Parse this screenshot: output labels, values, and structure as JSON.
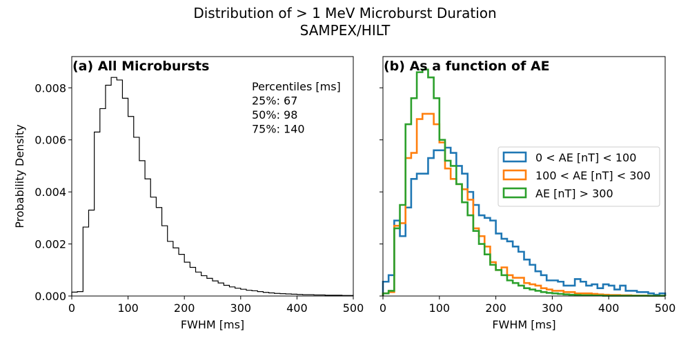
{
  "suptitle": [
    "Distribution of > 1 MeV Microburst Duration",
    "SAMPEX/HILT"
  ],
  "chart_data": [
    {
      "type": "histogram",
      "title": "(a) All Microbursts",
      "xlabel": "FWHM [ms]",
      "ylabel": "Probability Density",
      "xlim": [
        0,
        500
      ],
      "ylim": [
        0,
        0.0092
      ],
      "xticks": [
        0,
        100,
        200,
        300,
        400,
        500
      ],
      "yticks": [
        0.0,
        0.002,
        0.004,
        0.006,
        0.008
      ],
      "ytick_labels": [
        "0.000",
        "0.002",
        "0.004",
        "0.006",
        "0.008"
      ],
      "grid": false,
      "bin_edges_start": 0,
      "bin_width": 10,
      "annotation": [
        "Percentiles [ms]",
        "25%: 67",
        "50%: 98",
        "75%: 140"
      ],
      "series": [
        {
          "color": "#000000",
          "values": [
            0.00015,
            0.00017,
            0.00265,
            0.0033,
            0.0063,
            0.0072,
            0.0081,
            0.0084,
            0.0083,
            0.0076,
            0.0069,
            0.0061,
            0.0052,
            0.0045,
            0.0038,
            0.0034,
            0.0027,
            0.0021,
            0.00185,
            0.0016,
            0.0013,
            0.0011,
            0.00092,
            0.00078,
            0.00068,
            0.00058,
            0.0005,
            0.00041,
            0.00035,
            0.0003,
            0.00026,
            0.00022,
            0.0002,
            0.00017,
            0.00014,
            0.00012,
            0.0001,
            9e-05,
            8e-05,
            7e-05,
            6e-05,
            5e-05,
            5e-05,
            4e-05,
            4e-05,
            3e-05,
            3e-05,
            3e-05,
            2e-05,
            2e-05
          ]
        }
      ]
    },
    {
      "type": "histogram",
      "title": "(b) As a function of AE",
      "xlabel": "FWHM [ms]",
      "xlim": [
        0,
        500
      ],
      "ylim": [
        0,
        0.0092
      ],
      "xticks": [
        0,
        100,
        200,
        300,
        400,
        500
      ],
      "grid": false,
      "bin_edges_start": 0,
      "bin_width": 10,
      "legend_position": "center-right",
      "series": [
        {
          "name": "0 < AE [nT] < 100",
          "color": "#1f77b4",
          "values": [
            0.00055,
            0.0008,
            0.0029,
            0.0023,
            0.0034,
            0.0045,
            0.0047,
            0.0047,
            0.0053,
            0.0056,
            0.0056,
            0.0057,
            0.0055,
            0.005,
            0.0047,
            0.004,
            0.0035,
            0.0031,
            0.003,
            0.0029,
            0.0024,
            0.0022,
            0.0021,
            0.0019,
            0.0017,
            0.0014,
            0.0012,
            0.00095,
            0.0008,
            0.0006,
            0.0006,
            0.00055,
            0.0004,
            0.0004,
            0.00065,
            0.00055,
            0.0004,
            0.00045,
            0.0003,
            0.00045,
            0.0004,
            0.00025,
            0.0004,
            0.0002,
            0.0002,
            0.00015,
            0.00015,
            0.0001,
            5e-05,
            0.0001
          ]
        },
        {
          "name": "100 < AE [nT] < 300",
          "color": "#ff7f0e",
          "values": [
            0.0001,
            0.00015,
            0.0027,
            0.0028,
            0.0053,
            0.0055,
            0.0068,
            0.007,
            0.007,
            0.0066,
            0.0059,
            0.0049,
            0.0045,
            0.0043,
            0.0041,
            0.0037,
            0.0026,
            0.0023,
            0.0019,
            0.0013,
            0.001,
            0.0011,
            0.0008,
            0.0007,
            0.0007,
            0.0005,
            0.00045,
            0.0004,
            0.0003,
            0.00025,
            0.0002,
            0.0002,
            0.00015,
            0.00015,
            0.0001,
            0.0001,
            0.0001,
            8e-05,
            6e-05,
            5e-05,
            4e-05,
            4e-05,
            3e-05,
            3e-05,
            2e-05,
            2e-05,
            2e-05,
            1e-05,
            1e-05,
            1e-05
          ]
        },
        {
          "name": "AE [nT] > 300",
          "color": "#2ca02c",
          "values": [
            0.0001,
            0.0002,
            0.0026,
            0.0035,
            0.0066,
            0.0076,
            0.0086,
            0.0087,
            0.0084,
            0.0076,
            0.006,
            0.0052,
            0.005,
            0.0043,
            0.0036,
            0.0031,
            0.0025,
            0.002,
            0.0016,
            0.0012,
            0.001,
            0.0008,
            0.0006,
            0.0005,
            0.0004,
            0.0003,
            0.00025,
            0.0002,
            0.00015,
            0.00012,
            0.0001,
            8e-05,
            6e-05,
            5e-05,
            4e-05,
            3e-05,
            3e-05,
            2e-05,
            2e-05,
            1e-05,
            1e-05,
            1e-05,
            1e-05,
            1e-05,
            1e-05,
            1e-05,
            1e-05,
            1e-05,
            1e-05,
            1e-05
          ]
        }
      ]
    }
  ]
}
